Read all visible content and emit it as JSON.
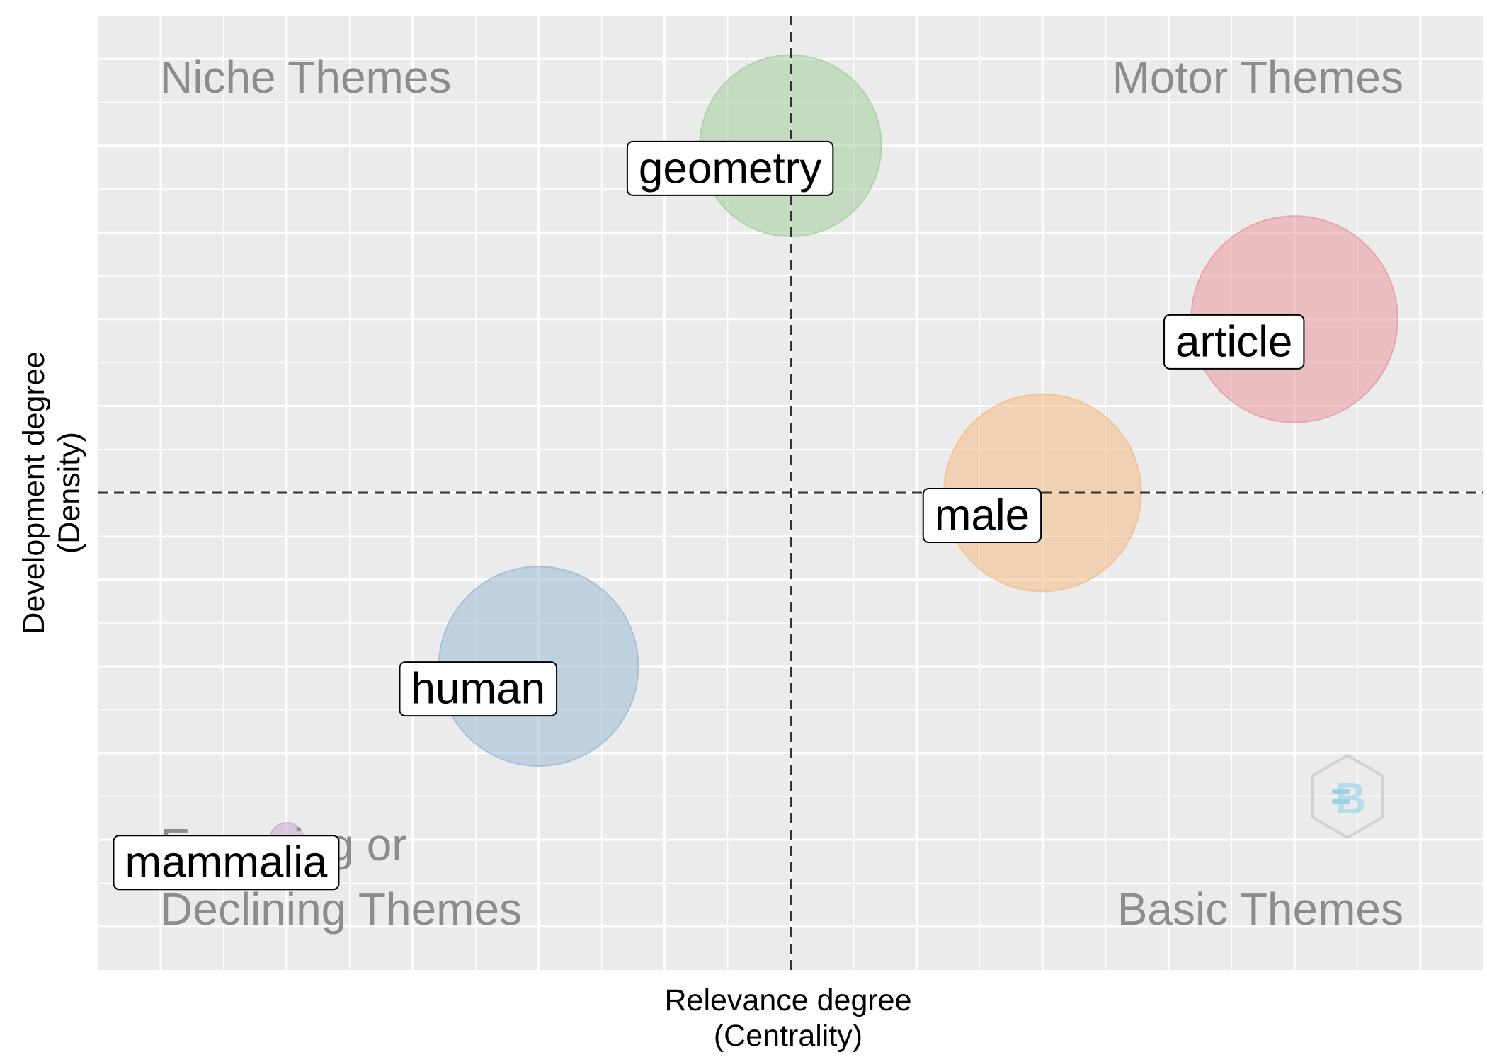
{
  "chart_data": {
    "type": "scatter",
    "xlabel": [
      "Relevance degree",
      "(Centrality)"
    ],
    "ylabel": [
      "Development degree",
      "(Density)"
    ],
    "quadrants": {
      "top_left": [
        "Niche Themes"
      ],
      "top_right": [
        "Motor Themes"
      ],
      "bottom_left": [
        "Emerging or",
        "Declining Themes"
      ],
      "bottom_right": [
        "Basic Themes"
      ]
    },
    "xlim": [
      0.5,
      11.5
    ],
    "ylim": [
      0.5,
      11.5
    ],
    "x_gridlines": [
      1,
      2,
      3,
      4,
      5,
      6,
      7,
      8,
      9,
      10,
      11
    ],
    "y_gridlines": [
      1,
      2,
      3,
      4,
      5,
      6,
      7,
      8,
      9,
      10,
      11
    ],
    "reference_lines": {
      "x": 6.0,
      "y": 6.0
    },
    "grid": true,
    "series": [
      {
        "name": "geometry",
        "x": 6.0,
        "y": 10.0,
        "size": 0.8,
        "color": "#a3cf9d"
      },
      {
        "name": "article",
        "x": 10.0,
        "y": 8.0,
        "size": 0.91,
        "color": "#e9999e"
      },
      {
        "name": "male",
        "x": 8.0,
        "y": 6.0,
        "size": 0.87,
        "color": "#f6bc85"
      },
      {
        "name": "human",
        "x": 4.0,
        "y": 4.0,
        "size": 0.88,
        "color": "#9bb9d4"
      },
      {
        "name": "mammalia",
        "x": 2.0,
        "y": 2.0,
        "size": 0.15,
        "color": "#c7a8cf"
      }
    ],
    "logo": "bibliometrix-logo-icon",
    "colors": {
      "panel": "#ebebeb",
      "grid_major": "#ffffff",
      "quadrant_text": "#8c8c8c",
      "reference_line": "#333333"
    }
  }
}
